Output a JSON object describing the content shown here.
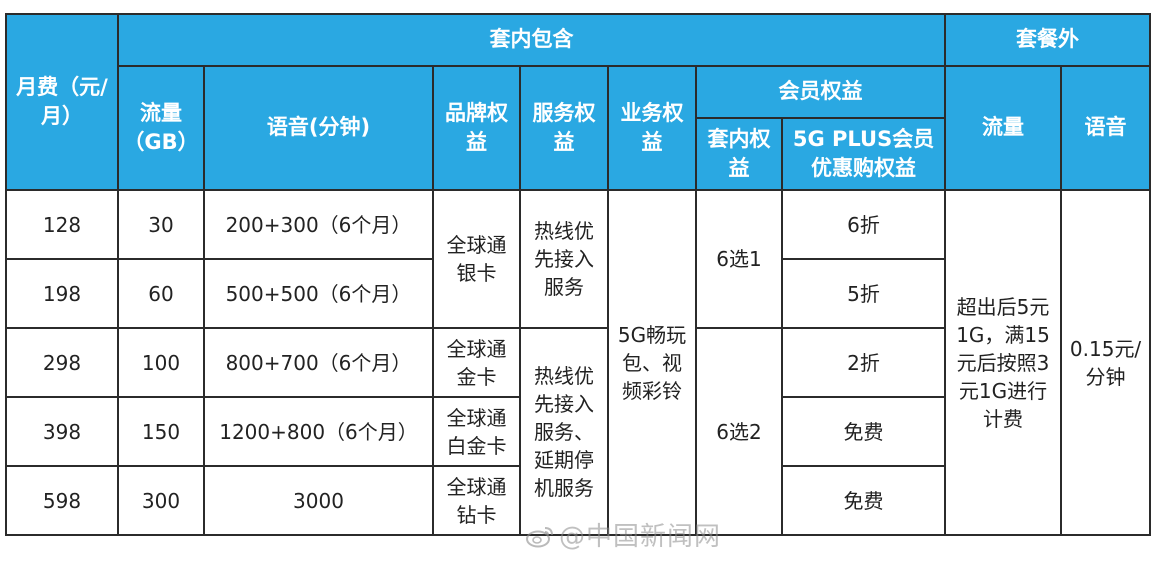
{
  "header": {
    "monthly_fee": "月费（元/月）",
    "included": "套内包含",
    "extra": "套餐外",
    "data_gb": "流量（GB）",
    "voice_min": "语音(分钟)",
    "brand_rights": "品牌权益",
    "service_rights": "服务权益",
    "business_rights": "业务权益",
    "member_rights": "会员权益",
    "in_plan_rights": "套内权益",
    "plus_rights": "5G PLUS会员优惠购权益",
    "extra_data": "流量",
    "extra_voice": "语音"
  },
  "rows": [
    {
      "fee": "128",
      "data": "30",
      "voice": "200+300（6个月）",
      "plus": "6折"
    },
    {
      "fee": "198",
      "data": "60",
      "voice": "500+500（6个月）",
      "plus": "5折"
    },
    {
      "fee": "298",
      "data": "100",
      "voice": "800+700（6个月）",
      "plus": "2折"
    },
    {
      "fee": "398",
      "data": "150",
      "voice": "1200+800（6个月）",
      "plus": "免费"
    },
    {
      "fee": "598",
      "data": "300",
      "voice": "3000",
      "plus": "免费"
    }
  ],
  "merged": {
    "brand_silver": "全球通银卡",
    "brand_gold": "全球通金卡",
    "brand_platinum": "全球通白金卡",
    "brand_diamond": "全球通钻卡",
    "service_a": "热线优先接入服务",
    "service_b": "热线优先接入服务、延期停机服务",
    "business": "5G畅玩包、视频彩铃",
    "choose_1": "6选1",
    "choose_2": "6选2",
    "extra_data_rule": "超出后5元1G，满15元后按照3元1G进行计费",
    "extra_voice_rule": "0.15元/分钟"
  },
  "watermark": {
    "text": "@中国新闻网",
    "icon": "weibo-icon"
  }
}
